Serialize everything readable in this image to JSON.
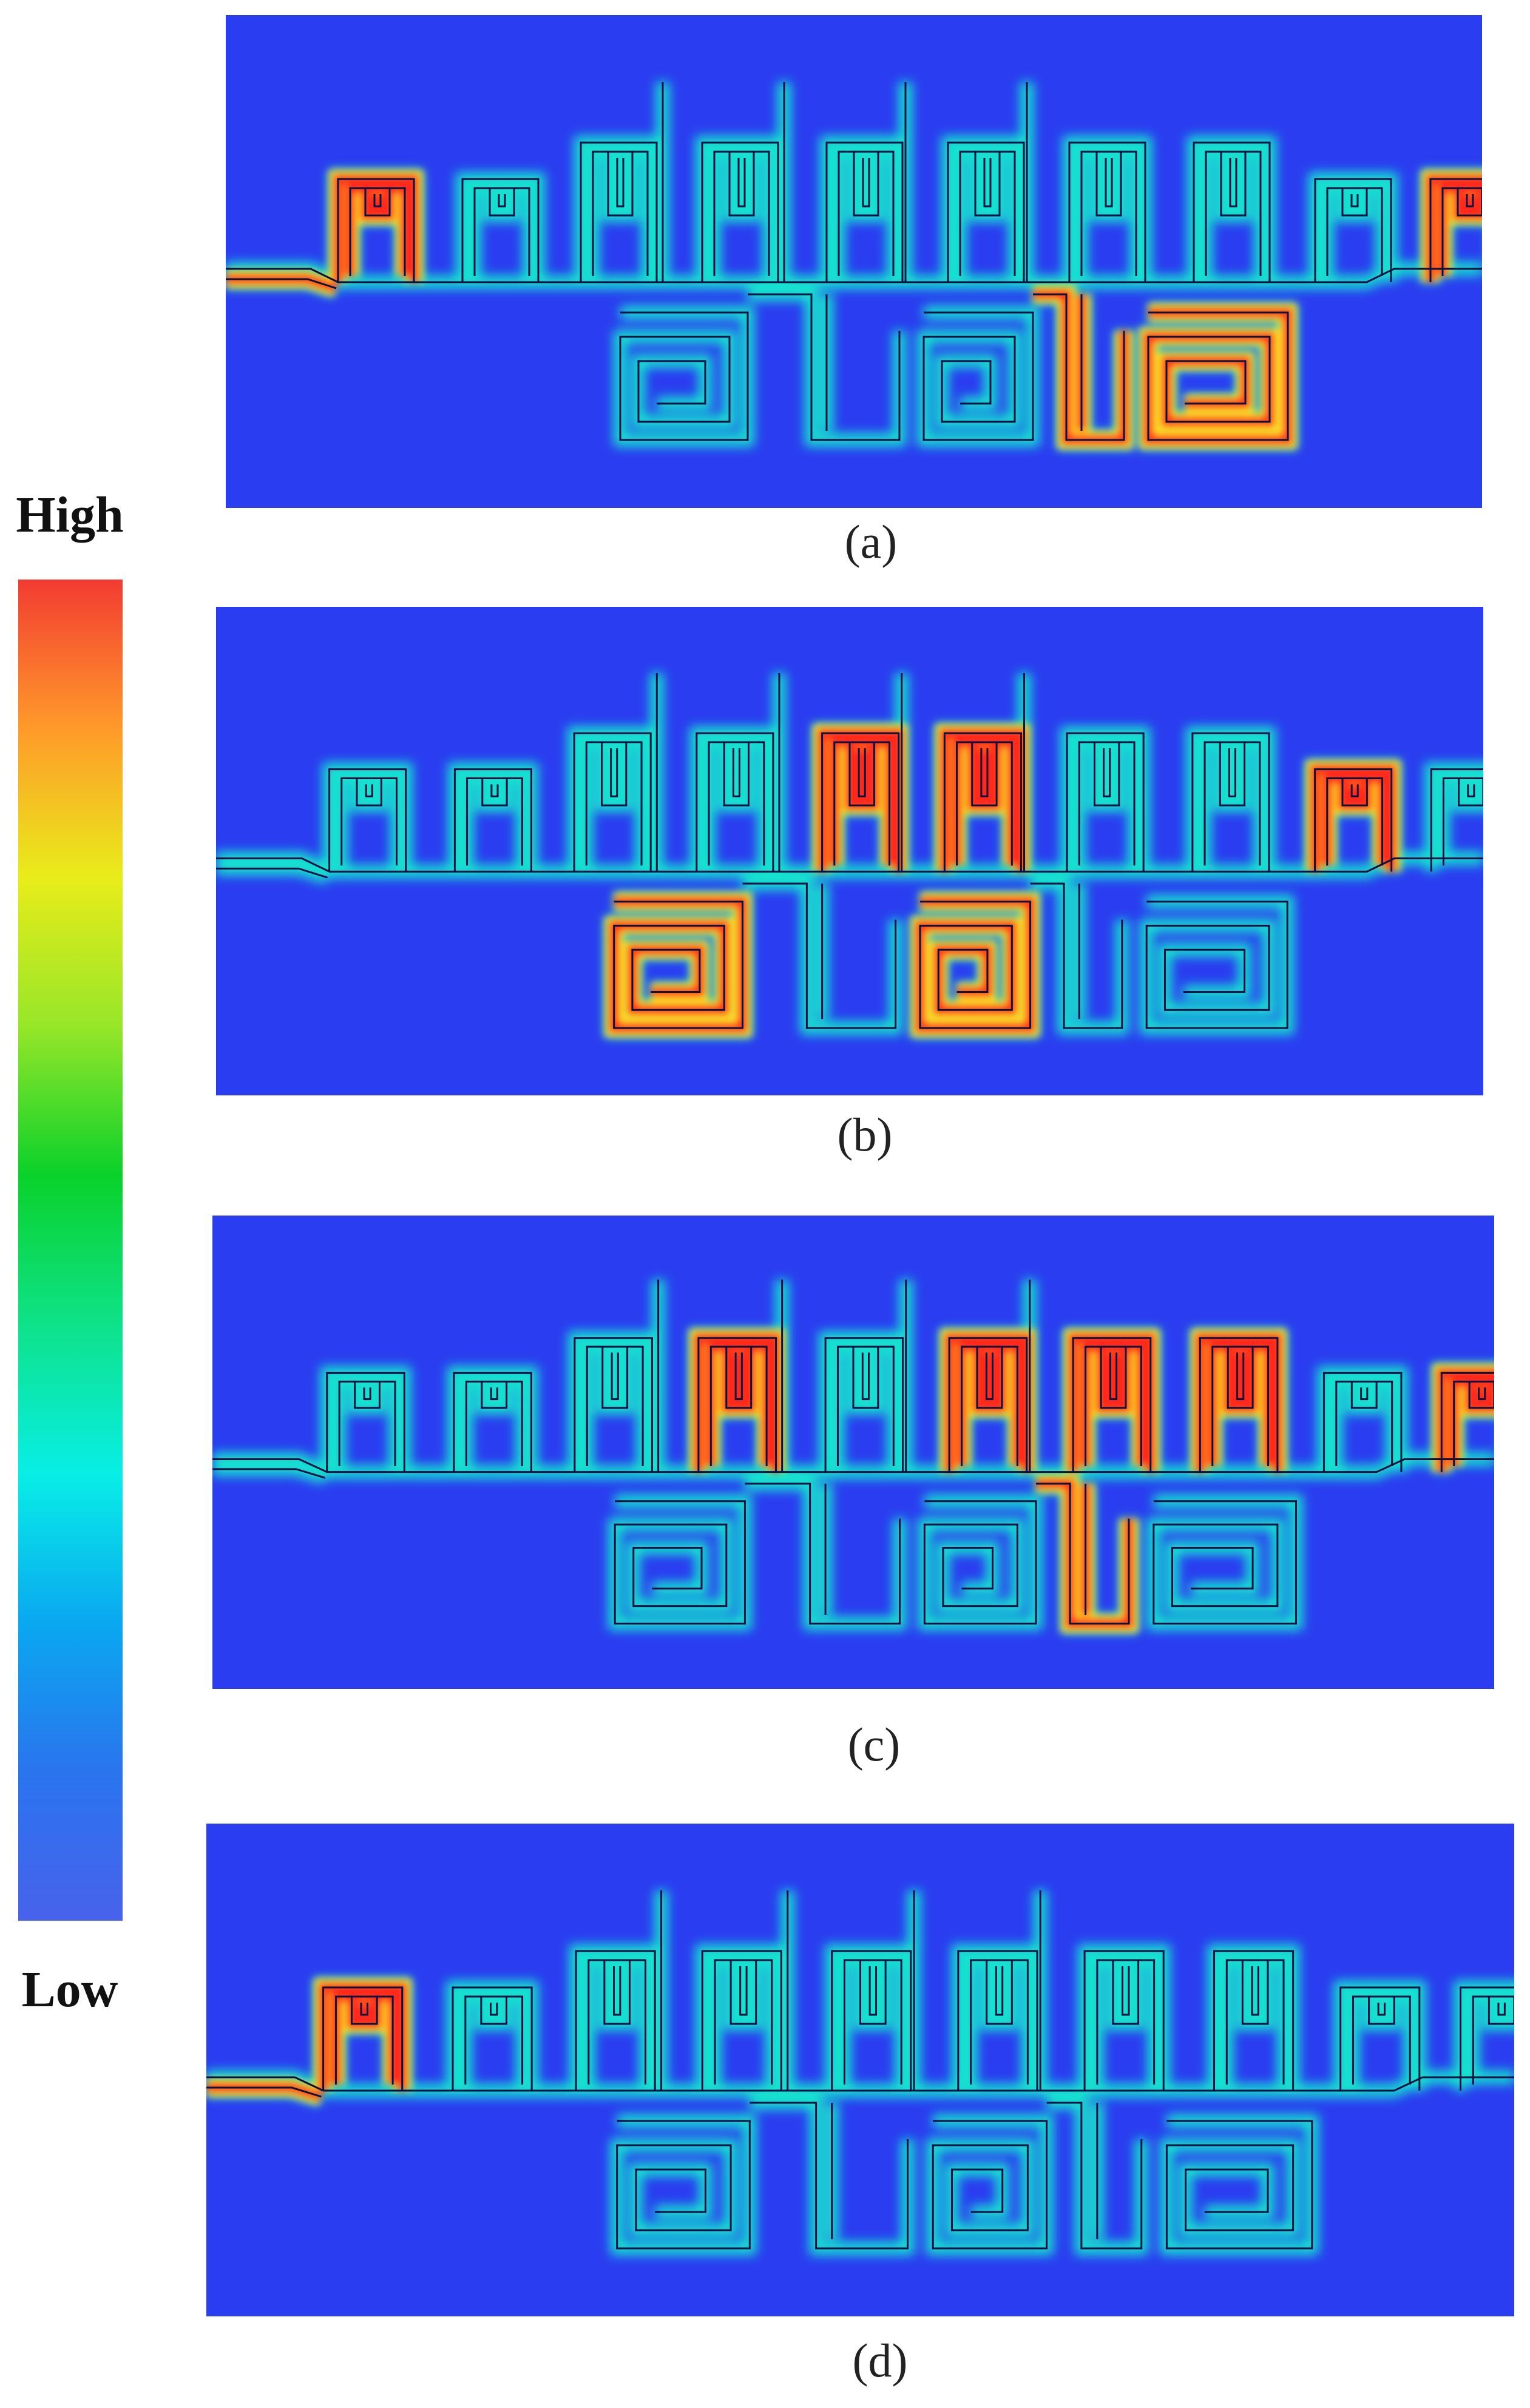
{
  "legend": {
    "high_label": "High",
    "low_label": "Low",
    "stops": [
      "#f23b32",
      "#ff9a2a",
      "#e8ec1a",
      "#97e629",
      "#0ad12a",
      "#0ee28a",
      "#08eee6",
      "#0aa8f0",
      "#2a74ee",
      "#4862ec"
    ]
  },
  "panels": [
    {
      "caption": "(a)",
      "hot_stubs": [
        0,
        9
      ],
      "hot_cells": [
        2
      ],
      "hot_segments": [
        1
      ]
    },
    {
      "caption": "(b)",
      "hot_stubs": [
        4,
        5,
        8
      ],
      "hot_cells": [
        0,
        1
      ],
      "hot_segments": []
    },
    {
      "caption": "(c)",
      "hot_stubs": [
        3,
        5,
        6,
        7,
        9
      ],
      "hot_cells": [],
      "hot_segments": [
        1
      ]
    },
    {
      "caption": "(d)",
      "hot_stubs": [
        0
      ],
      "hot_cells": [],
      "hot_segments": []
    }
  ]
}
